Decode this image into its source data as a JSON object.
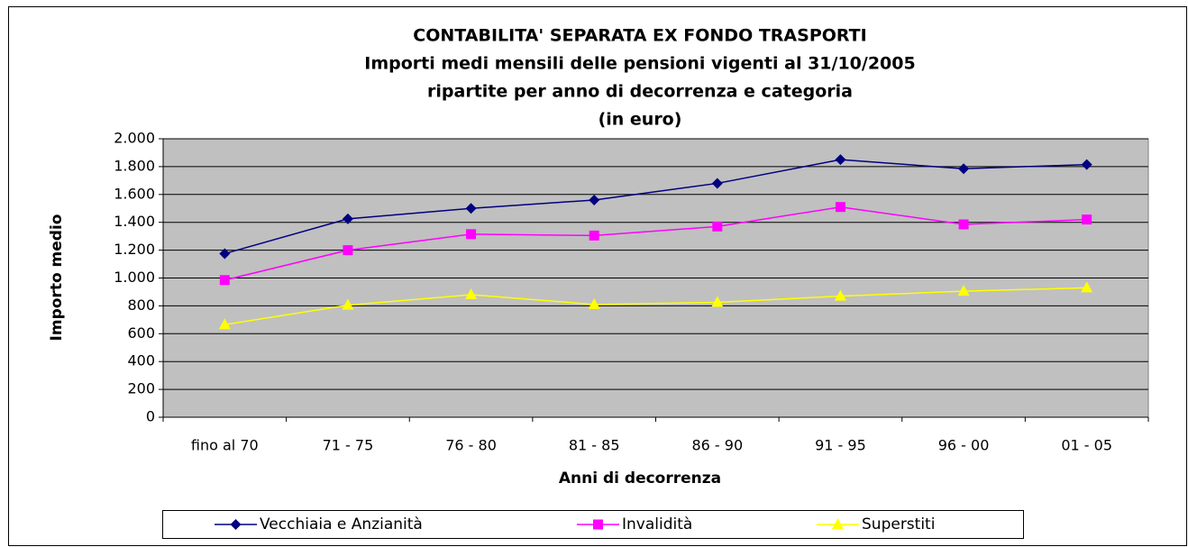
{
  "chart_data": {
    "type": "line",
    "title": [
      "CONTABILITA' SEPARATA EX FONDO TRASPORTI",
      "Importi medi mensili delle pensioni vigenti al 31/10/2005",
      "ripartite per anno di decorrenza e categoria",
      "(in euro)"
    ],
    "x_label": "Anni di decorrenza",
    "y_label": "Importo medio",
    "categories": [
      "fino al 70",
      "71 - 75",
      "76 - 80",
      "81 - 85",
      "86 - 90",
      "91 - 95",
      "96 - 00",
      "01 - 05"
    ],
    "series": [
      {
        "name": "Vecchiaia e Anzianità",
        "color": "#000080",
        "marker": "diamond",
        "values": [
          1175,
          1425,
          1500,
          1560,
          1680,
          1850,
          1785,
          1815
        ]
      },
      {
        "name": "Invalidità",
        "color": "#ff00ff",
        "marker": "square",
        "values": [
          985,
          1200,
          1315,
          1305,
          1370,
          1510,
          1385,
          1420
        ]
      },
      {
        "name": "Superstiti",
        "color": "#ffff00",
        "marker": "triangle",
        "values": [
          665,
          805,
          880,
          810,
          825,
          870,
          905,
          930
        ]
      }
    ],
    "ylim": [
      0,
      2000
    ],
    "yticks": [
      0,
      200,
      400,
      600,
      800,
      {
        "value": 1000,
        "label": "1.000"
      },
      {
        "value": 1200,
        "label": "1.200"
      },
      {
        "value": 1400,
        "label": "1.400"
      },
      {
        "value": 1600,
        "label": "1.600"
      },
      {
        "value": 1800,
        "label": "1.800"
      },
      {
        "value": 2000,
        "label": "2.000"
      }
    ],
    "grid": true,
    "legend": "bottom",
    "plot_background": "#c0c0c0"
  }
}
